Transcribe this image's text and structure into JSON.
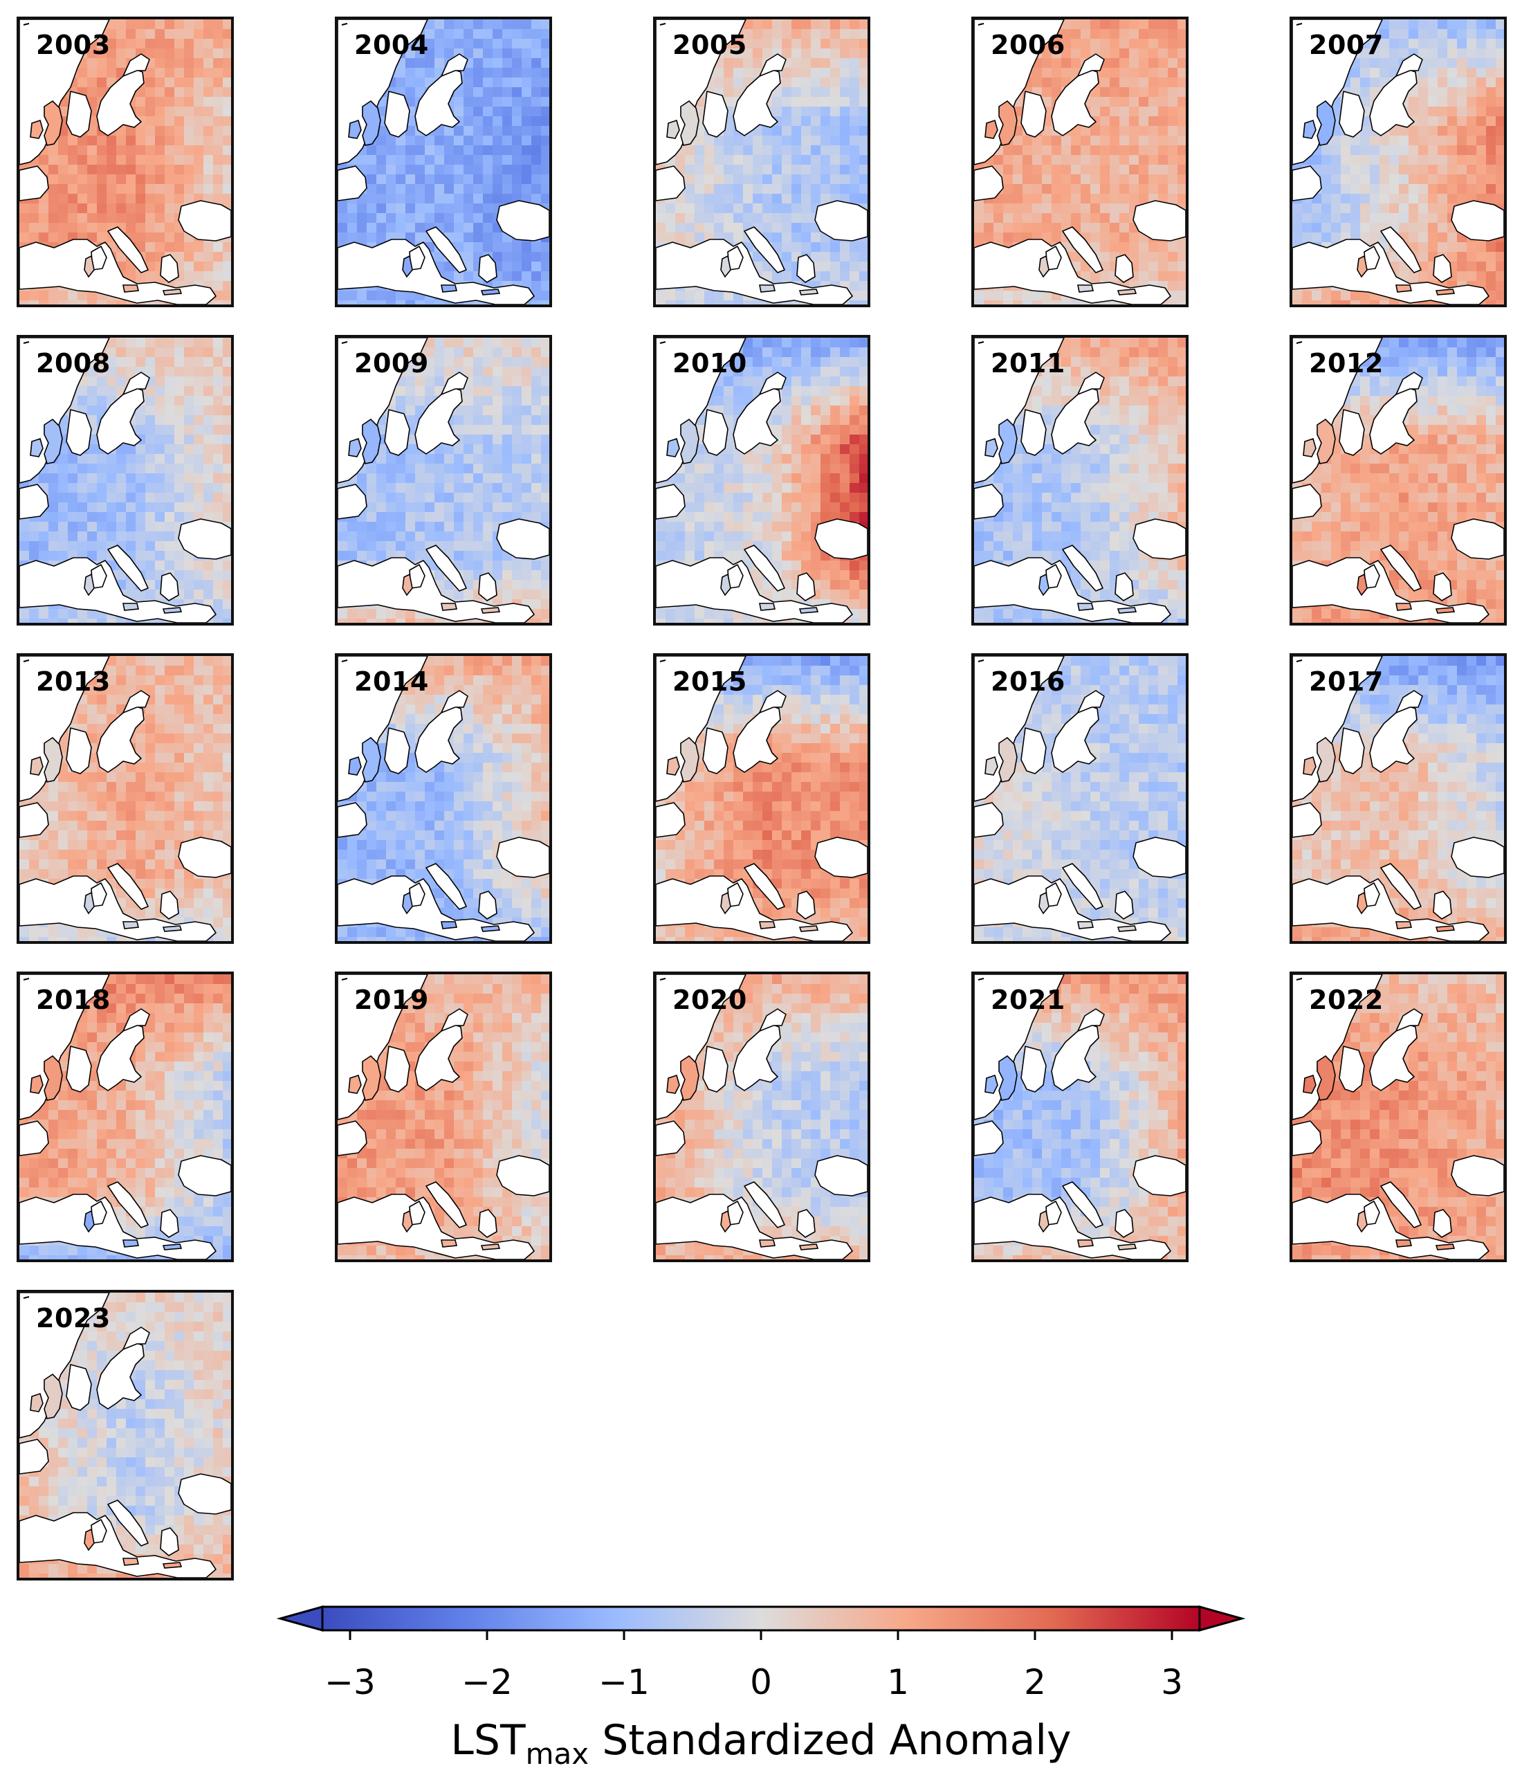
{
  "figure": {
    "type": "map-grid",
    "colormap": "coolwarm",
    "colors": {
      "cold_end": "#3b4cc0",
      "neutral": "#dddddd",
      "warm_end": "#b40426",
      "ocean": "#ffffff",
      "coastline": "#000000"
    }
  },
  "panels": [
    {
      "year": "2003",
      "west": 1.2,
      "central": 1.4,
      "east": 0.2,
      "north": 1.0,
      "south": 0.5
    },
    {
      "year": "2004",
      "west": -1.3,
      "central": -1.2,
      "east": -1.7,
      "north": -1.2,
      "south": -1.1
    },
    {
      "year": "2005",
      "west": 0.2,
      "central": -0.6,
      "east": -0.8,
      "north": 0.8,
      "south": -0.3
    },
    {
      "year": "2006",
      "west": 1.0,
      "central": 0.8,
      "east": 0.9,
      "north": 1.1,
      "south": 0.2
    },
    {
      "year": "2007",
      "west": -1.0,
      "central": 0.3,
      "east": 1.7,
      "north": -0.8,
      "south": 1.0
    },
    {
      "year": "2008",
      "west": -1.0,
      "central": -0.8,
      "east": 0.3,
      "north": 0.4,
      "south": -0.5
    },
    {
      "year": "2009",
      "west": -0.9,
      "central": -0.7,
      "east": -0.5,
      "north": 0.2,
      "south": 0.6
    },
    {
      "year": "2010",
      "west": -0.5,
      "central": 0.0,
      "east": 2.6,
      "north": -1.3,
      "south": -0.2
    },
    {
      "year": "2011",
      "west": -0.8,
      "central": -0.6,
      "east": 0.7,
      "north": 1.0,
      "south": -0.7
    },
    {
      "year": "2012",
      "west": 0.7,
      "central": 1.1,
      "east": 0.8,
      "north": -1.4,
      "south": 1.2
    },
    {
      "year": "2013",
      "west": 0.3,
      "central": 1.0,
      "east": 0.4,
      "north": 0.7,
      "south": -0.3
    },
    {
      "year": "2014",
      "west": -1.1,
      "central": -0.9,
      "east": 0.7,
      "north": 0.9,
      "south": -1.0
    },
    {
      "year": "2015",
      "west": 0.4,
      "central": 1.5,
      "east": 1.3,
      "north": -1.4,
      "south": 0.6
    },
    {
      "year": "2016",
      "west": 0.1,
      "central": -0.4,
      "east": -0.6,
      "north": -0.6,
      "south": -0.2
    },
    {
      "year": "2017",
      "west": 0.4,
      "central": 0.6,
      "east": -0.4,
      "north": -1.5,
      "south": 1.0
    },
    {
      "year": "2018",
      "west": 1.1,
      "central": 0.8,
      "east": -0.6,
      "north": 1.5,
      "south": -1.1
    },
    {
      "year": "2019",
      "west": 1.2,
      "central": 1.1,
      "east": -0.2,
      "north": 0.7,
      "south": 0.6
    },
    {
      "year": "2020",
      "west": 1.0,
      "central": -0.4,
      "east": -0.6,
      "north": 0.9,
      "south": 0.8
    },
    {
      "year": "2021",
      "west": -0.9,
      "central": -0.8,
      "east": 1.0,
      "north": 1.2,
      "south": 0.6
    },
    {
      "year": "2022",
      "west": 1.5,
      "central": 1.3,
      "east": 0.8,
      "north": 0.6,
      "south": 1.0
    },
    {
      "year": "2023",
      "west": 0.5,
      "central": -0.5,
      "east": 0.3,
      "north": 0.2,
      "south": 0.9
    }
  ],
  "colorbar": {
    "min": -3,
    "max": 3,
    "ticks": [
      "−3",
      "−2",
      "−1",
      "0",
      "1",
      "2",
      "3"
    ],
    "label_main": "LST",
    "label_sub": "max",
    "label_rest": " Standardized Anomaly"
  }
}
